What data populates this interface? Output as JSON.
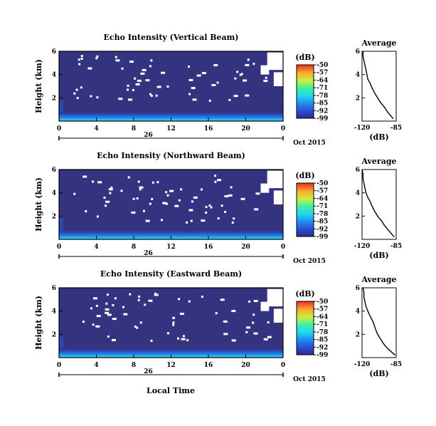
{
  "chart_data": [
    {
      "type": "heatmap",
      "title": "Echo Intensity (Vertical Beam)",
      "ylabel": "Height (km)",
      "ylim": [
        0,
        6
      ],
      "yticks": [
        "2",
        "4",
        "6"
      ],
      "xlim": [
        0,
        24
      ],
      "xticks": [
        "0",
        "4",
        "8",
        "12",
        "16",
        "20",
        "0"
      ],
      "day_label": "26",
      "date_label": "Oct 2015",
      "colorbar": {
        "unit": "(dB)",
        "ticks": [
          "-50",
          "-57",
          "-64",
          "-71",
          "-78",
          "-85",
          "-92",
          "-99"
        ],
        "range": [
          -99,
          -50
        ]
      },
      "profile": {
        "title": "Average",
        "xlabel": "(dB)",
        "xticks": [
          "-120",
          "-85"
        ],
        "yticks": [
          "2",
          "4",
          "6"
        ],
        "xlim": [
          -120,
          -85
        ],
        "x": [
          -88,
          -91,
          -94,
          -97,
          -101,
          -104,
          -107,
          -110,
          -112,
          -114,
          -115,
          -116,
          -117,
          -118,
          -119,
          -119
        ],
        "y": [
          0.2,
          0.5,
          0.8,
          1.2,
          1.6,
          2.0,
          2.4,
          2.9,
          3.3,
          3.6,
          4.0,
          4.4,
          4.8,
          5.2,
          5.6,
          6.0
        ]
      }
    },
    {
      "type": "heatmap",
      "title": "Echo Intensity (Northward Beam)",
      "ylabel": "Height (km)",
      "ylim": [
        0,
        6
      ],
      "yticks": [
        "2",
        "4",
        "6"
      ],
      "xlim": [
        0,
        24
      ],
      "xticks": [
        "0",
        "4",
        "8",
        "12",
        "16",
        "20",
        "0"
      ],
      "day_label": "26",
      "date_label": "Oct 2015",
      "colorbar": {
        "unit": "(dB)",
        "ticks": [
          "-50",
          "-57",
          "-64",
          "-71",
          "-78",
          "-85",
          "-92",
          "-99"
        ],
        "range": [
          -99,
          -50
        ]
      },
      "profile": {
        "title": "Average",
        "xlabel": "(dB)",
        "xticks": [
          "-120",
          "-85"
        ],
        "yticks": [
          "2",
          "4",
          "6"
        ],
        "xlim": [
          -120,
          -85
        ],
        "x": [
          -87,
          -90,
          -93,
          -97,
          -100,
          -104,
          -107,
          -110,
          -112,
          -114,
          -116,
          -117,
          -118,
          -119,
          -119,
          -120
        ],
        "y": [
          0.2,
          0.5,
          0.8,
          1.2,
          1.6,
          2.0,
          2.4,
          2.9,
          3.3,
          3.6,
          4.0,
          4.4,
          4.8,
          5.2,
          5.6,
          6.0
        ]
      }
    },
    {
      "type": "heatmap",
      "title": "Echo Intensity (Eastward Beam)",
      "ylabel": "Height (km)",
      "xlabel": "Local Time",
      "ylim": [
        0,
        6
      ],
      "yticks": [
        "2",
        "4",
        "6"
      ],
      "xlim": [
        0,
        24
      ],
      "xticks": [
        "0",
        "4",
        "8",
        "12",
        "16",
        "20",
        "0"
      ],
      "day_label": "26",
      "date_label": "Oct 2015",
      "colorbar": {
        "unit": "(dB)",
        "ticks": [
          "-50",
          "-57",
          "-64",
          "-71",
          "-78",
          "-85",
          "-92",
          "-99"
        ],
        "range": [
          -99,
          -50
        ]
      },
      "profile": {
        "title": "Average",
        "xlabel": "(dB)",
        "xticks": [
          "-120",
          "-85"
        ],
        "yticks": [
          "2",
          "4",
          "6"
        ],
        "xlim": [
          -120,
          -85
        ],
        "x": [
          -86,
          -90,
          -94,
          -98,
          -101,
          -104,
          -106,
          -108,
          -110,
          -112,
          -114,
          -116,
          -117,
          -118,
          -118,
          -119
        ],
        "y": [
          0.2,
          0.5,
          0.8,
          1.2,
          1.6,
          2.0,
          2.4,
          2.9,
          3.3,
          3.6,
          4.0,
          4.4,
          4.8,
          5.2,
          5.6,
          6.0
        ]
      }
    }
  ]
}
